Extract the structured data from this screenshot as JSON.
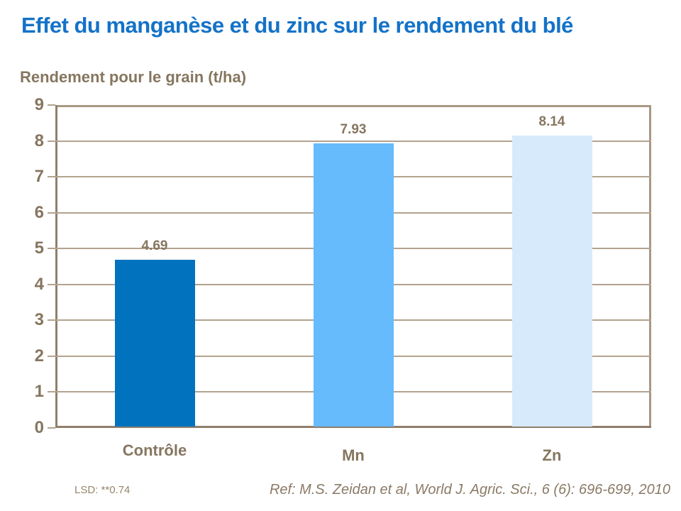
{
  "header": {
    "title": "Effet du manganèse et du zinc sur le rendement du blé",
    "y_axis_title": "Rendement pour le grain (t/ha)"
  },
  "chart_data": {
    "type": "bar",
    "title": "Effet du manganèse et du zinc sur le rendement du blé",
    "xlabel": "",
    "ylabel": "Rendement pour le grain (t/ha)",
    "categories": [
      "Contrôle",
      "Mn",
      "Zn"
    ],
    "values": [
      4.69,
      7.93,
      8.14
    ],
    "value_labels": [
      "4.69",
      "7.93",
      "8.14"
    ],
    "bar_colors": [
      "#0173BE",
      "#66BBFC",
      "#D6EAFC"
    ],
    "ylim": [
      0,
      9
    ],
    "yticks": [
      0,
      1,
      2,
      3,
      4,
      5,
      6,
      7,
      8,
      9
    ],
    "grid": true,
    "legend": false
  },
  "footer": {
    "lsd_note": "LSD: **0.74",
    "reference": "Ref: M.S. Zeidan et al, World J. Agric. Sci., 6 (6): 696-699, 2010"
  },
  "colors": {
    "bg": "#FFFFFF",
    "title_text": "#1472C8",
    "axis_text": "#86765F",
    "axis_line": "#8F7F6B",
    "gridline": "#B2A38F",
    "border": "#A89983",
    "note_text": "#95856C",
    "ref_text": "#8A7A66"
  }
}
